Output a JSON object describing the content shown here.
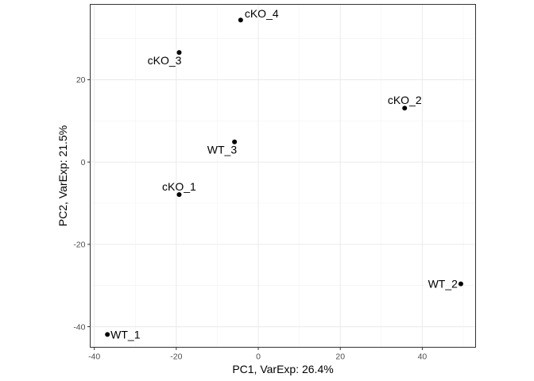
{
  "chart_data": {
    "type": "scatter",
    "title": "",
    "xlabel": "PC1, VarExp: 26.4%",
    "ylabel": "PC2, VarExp: 21.5%",
    "xlim": [
      -41,
      53
    ],
    "ylim": [
      -45,
      38.3
    ],
    "xticks": [
      -40,
      -20,
      0,
      20,
      40
    ],
    "yticks": [
      -40,
      -20,
      0,
      20
    ],
    "xtick_labels": [
      "-40",
      "-20",
      "0",
      "20",
      "40"
    ],
    "ytick_labels": [
      "-40",
      "-20",
      "0",
      "20"
    ],
    "grid": true,
    "legend": "none",
    "point_color": "#000000",
    "points": [
      {
        "label": "cKO_4",
        "x": -4.3,
        "y": 34.5,
        "label_pos": "upper-right"
      },
      {
        "label": "cKO_3",
        "x": -19.3,
        "y": 26.6,
        "label_pos": "lower-left"
      },
      {
        "label": "cKO_2",
        "x": 35.7,
        "y": 13.1,
        "label_pos": "above"
      },
      {
        "label": "WT_3",
        "x": -5.8,
        "y": 4.9,
        "label_pos": "lower-left"
      },
      {
        "label": "cKO_1",
        "x": -19.3,
        "y": -7.9,
        "label_pos": "above"
      },
      {
        "label": "WT_2",
        "x": 49.4,
        "y": -29.6,
        "label_pos": "left"
      },
      {
        "label": "WT_1",
        "x": -36.8,
        "y": -41.9,
        "label_pos": "right"
      }
    ]
  }
}
